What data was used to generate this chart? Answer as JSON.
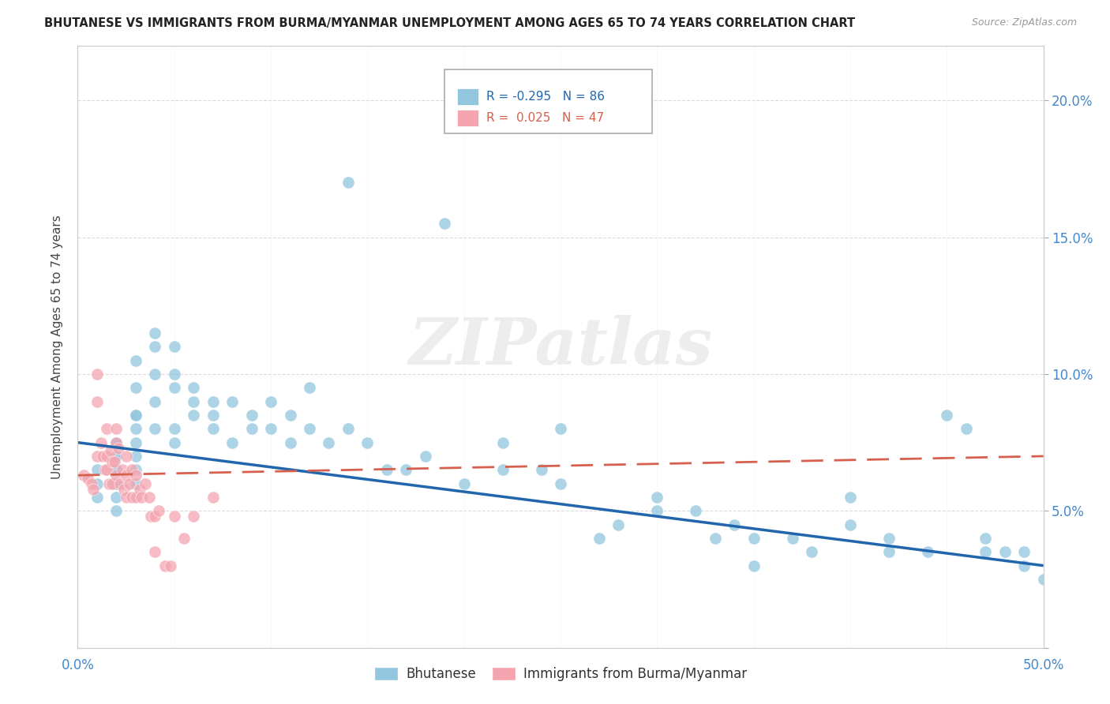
{
  "title": "BHUTANESE VS IMMIGRANTS FROM BURMA/MYANMAR UNEMPLOYMENT AMONG AGES 65 TO 74 YEARS CORRELATION CHART",
  "source": "Source: ZipAtlas.com",
  "ylabel": "Unemployment Among Ages 65 to 74 years",
  "blue_label": "Bhutanese",
  "pink_label": "Immigrants from Burma/Myanmar",
  "blue_R": "-0.295",
  "blue_N": "86",
  "pink_R": "0.025",
  "pink_N": "47",
  "blue_color": "#92C5DE",
  "pink_color": "#F4A5B0",
  "blue_line_color": "#2166AC",
  "pink_line_color": "#D6604D",
  "xlim": [
    0.0,
    0.5
  ],
  "ylim": [
    0.0,
    0.22
  ],
  "background_color": "#ffffff",
  "watermark_text": "ZIPatlas",
  "blue_x": [
    0.01,
    0.01,
    0.01,
    0.02,
    0.02,
    0.02,
    0.02,
    0.02,
    0.02,
    0.02,
    0.02,
    0.02,
    0.02,
    0.03,
    0.03,
    0.03,
    0.03,
    0.03,
    0.03,
    0.03,
    0.03,
    0.03,
    0.04,
    0.04,
    0.04,
    0.04,
    0.04,
    0.05,
    0.05,
    0.05,
    0.05,
    0.05,
    0.06,
    0.06,
    0.06,
    0.07,
    0.07,
    0.07,
    0.08,
    0.08,
    0.09,
    0.09,
    0.1,
    0.1,
    0.11,
    0.11,
    0.12,
    0.12,
    0.13,
    0.14,
    0.15,
    0.16,
    0.17,
    0.18,
    0.2,
    0.22,
    0.22,
    0.24,
    0.25,
    0.25,
    0.28,
    0.3,
    0.3,
    0.32,
    0.33,
    0.34,
    0.35,
    0.37,
    0.38,
    0.4,
    0.4,
    0.42,
    0.44,
    0.45,
    0.46,
    0.47,
    0.48,
    0.49,
    0.49,
    0.5,
    0.14,
    0.19,
    0.27,
    0.35,
    0.42,
    0.47
  ],
  "blue_y": [
    0.065,
    0.06,
    0.055,
    0.075,
    0.07,
    0.065,
    0.06,
    0.055,
    0.05,
    0.07,
    0.065,
    0.06,
    0.075,
    0.085,
    0.08,
    0.075,
    0.07,
    0.065,
    0.06,
    0.105,
    0.095,
    0.085,
    0.115,
    0.11,
    0.1,
    0.09,
    0.08,
    0.11,
    0.1,
    0.095,
    0.08,
    0.075,
    0.095,
    0.09,
    0.085,
    0.09,
    0.085,
    0.08,
    0.09,
    0.075,
    0.085,
    0.08,
    0.09,
    0.08,
    0.085,
    0.075,
    0.095,
    0.08,
    0.075,
    0.08,
    0.075,
    0.065,
    0.065,
    0.07,
    0.06,
    0.075,
    0.065,
    0.065,
    0.08,
    0.06,
    0.045,
    0.055,
    0.05,
    0.05,
    0.04,
    0.045,
    0.04,
    0.04,
    0.035,
    0.055,
    0.045,
    0.04,
    0.035,
    0.085,
    0.08,
    0.035,
    0.035,
    0.03,
    0.035,
    0.025,
    0.17,
    0.155,
    0.04,
    0.03,
    0.035,
    0.04
  ],
  "pink_x": [
    0.003,
    0.005,
    0.007,
    0.008,
    0.01,
    0.01,
    0.01,
    0.012,
    0.013,
    0.014,
    0.015,
    0.015,
    0.015,
    0.016,
    0.017,
    0.018,
    0.018,
    0.019,
    0.02,
    0.02,
    0.02,
    0.021,
    0.022,
    0.023,
    0.024,
    0.025,
    0.025,
    0.025,
    0.027,
    0.028,
    0.028,
    0.03,
    0.03,
    0.032,
    0.033,
    0.035,
    0.037,
    0.038,
    0.04,
    0.04,
    0.042,
    0.045,
    0.048,
    0.05,
    0.055,
    0.06,
    0.07
  ],
  "pink_y": [
    0.063,
    0.062,
    0.06,
    0.058,
    0.1,
    0.09,
    0.07,
    0.075,
    0.07,
    0.065,
    0.08,
    0.07,
    0.065,
    0.06,
    0.072,
    0.068,
    0.06,
    0.068,
    0.08,
    0.075,
    0.063,
    0.073,
    0.06,
    0.065,
    0.058,
    0.07,
    0.063,
    0.055,
    0.06,
    0.055,
    0.065,
    0.063,
    0.055,
    0.058,
    0.055,
    0.06,
    0.055,
    0.048,
    0.035,
    0.048,
    0.05,
    0.03,
    0.03,
    0.048,
    0.04,
    0.048,
    0.055
  ],
  "blue_trend_x": [
    0.0,
    0.5
  ],
  "blue_trend_y_start": 0.075,
  "blue_trend_y_end": 0.03,
  "pink_trend_x": [
    0.0,
    0.5
  ],
  "pink_trend_y_start": 0.063,
  "pink_trend_y_end": 0.07
}
